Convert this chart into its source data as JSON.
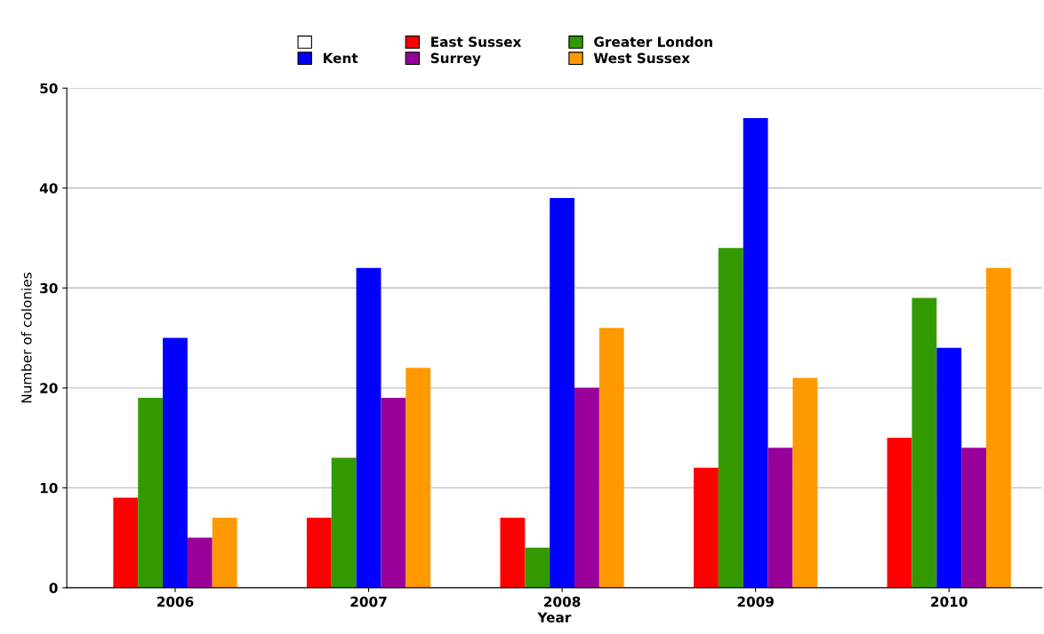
{
  "chart_data": {
    "type": "bar",
    "xlabel": "Year",
    "ylabel": "Number of colonies",
    "categories": [
      "2006",
      "2007",
      "2008",
      "2009",
      "2010"
    ],
    "series": [
      {
        "color": "#ffffff",
        "values": [
          null,
          null,
          null,
          null,
          null
        ]
      },
      {
        "name": "East Sussex",
        "color": "#ff0000",
        "values": [
          9,
          7,
          7,
          12,
          15
        ]
      },
      {
        "name": "Greater London",
        "color": "#339900",
        "values": [
          19,
          13,
          4,
          34,
          29
        ]
      },
      {
        "name": "Kent",
        "color": "#0000ff",
        "values": [
          25,
          32,
          39,
          47,
          24
        ]
      },
      {
        "name": "Surrey",
        "color": "#990099",
        "values": [
          5,
          19,
          20,
          14,
          14
        ]
      },
      {
        "name": "West Sussex",
        "color": "#ff9900",
        "values": [
          7,
          22,
          26,
          21,
          32
        ]
      }
    ],
    "ylim": [
      0,
      50
    ],
    "yticks": [
      0,
      10,
      20,
      30,
      40,
      50
    ],
    "grid": "y",
    "legend": "top"
  }
}
